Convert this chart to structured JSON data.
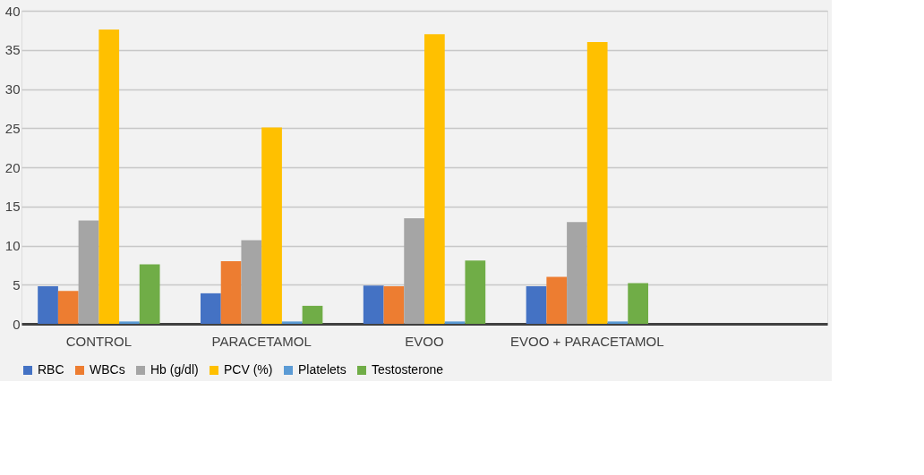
{
  "chart_data": {
    "type": "bar",
    "categories": [
      "CONTROL",
      "PARACETAMOL",
      "EVOO",
      "EVOO + PARACETAMOL",
      null
    ],
    "series": [
      {
        "name": "RBC",
        "color": "#4472c4",
        "values": [
          4.8,
          3.9,
          4.9,
          4.8,
          null
        ]
      },
      {
        "name": "WBCs",
        "color": "#ed7d31",
        "values": [
          4.2,
          8.0,
          4.8,
          6.0,
          null
        ]
      },
      {
        "name": "Hb (g/dl)",
        "color": "#a5a5a5",
        "values": [
          13.2,
          10.7,
          13.5,
          13.0,
          null
        ]
      },
      {
        "name": "PCV (%)",
        "color": "#ffc000",
        "values": [
          37.6,
          25.1,
          37.0,
          36.0,
          null
        ]
      },
      {
        "name": "Platelets",
        "color": "#5b9bd5",
        "values": [
          0.3,
          0.3,
          0.3,
          0.3,
          null
        ]
      },
      {
        "name": "Testosterone",
        "color": "#70ad47",
        "values": [
          7.6,
          2.3,
          8.1,
          5.2,
          null
        ]
      }
    ],
    "ylim": [
      0,
      40
    ],
    "yticks": [
      0,
      5,
      10,
      15,
      20,
      25,
      30,
      35,
      40
    ],
    "grid": "y",
    "legend": "bottom"
  }
}
